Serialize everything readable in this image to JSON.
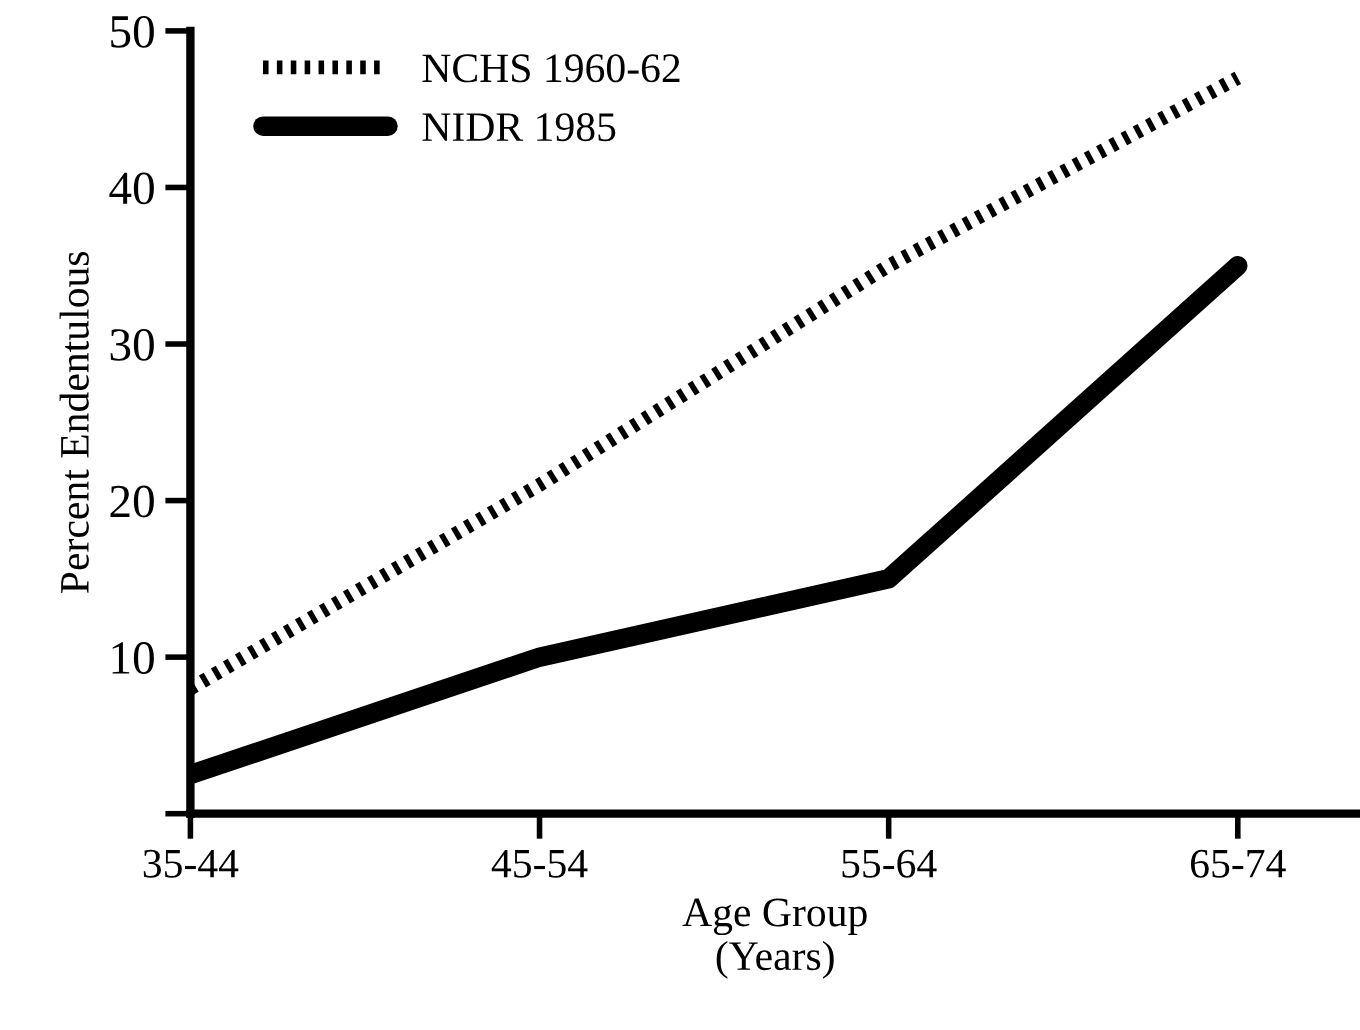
{
  "chart_data": {
    "type": "line",
    "xlabel": "Age Group\n(Years)",
    "ylabel": "Percent Endentulous",
    "categories": [
      "35-44",
      "45-54",
      "55-64",
      "65-74"
    ],
    "series": [
      {
        "name": "NCHS 1960-62",
        "color": "#000000",
        "line_style": "dotted",
        "values": [
          8,
          21,
          35,
          47
        ]
      },
      {
        "name": "NIDR 1985",
        "color": "#000000",
        "line_style": "solid",
        "values": [
          2.5,
          10,
          15,
          35
        ]
      }
    ],
    "ylim": [
      0,
      50
    ],
    "yticks": [
      {
        "value": 0,
        "label": null
      },
      10,
      20,
      30,
      40,
      50
    ],
    "grid": false,
    "legend": "top left",
    "marker": "none"
  }
}
